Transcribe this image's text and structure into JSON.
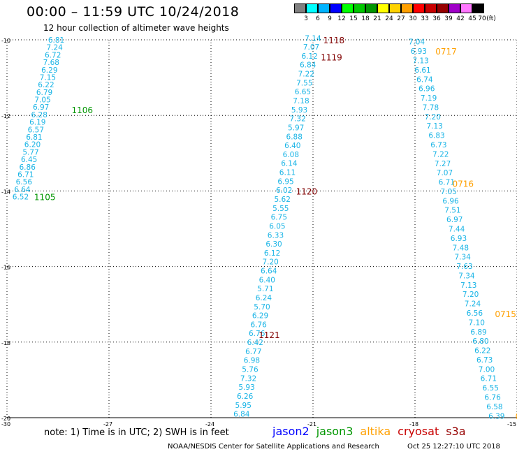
{
  "header": {
    "title": "00:00 – 11:59 UTC 10/24/2018",
    "subtitle": "12 hour collection of altimeter wave heights"
  },
  "color_scale": {
    "unit_label": "(ft)",
    "entries": [
      {
        "label": "3",
        "color": "#808080"
      },
      {
        "label": "6",
        "color": "#00ffff"
      },
      {
        "label": "9",
        "color": "#00b4ff"
      },
      {
        "label": "12",
        "color": "#0000ff"
      },
      {
        "label": "15",
        "color": "#00ff00"
      },
      {
        "label": "18",
        "color": "#00c800"
      },
      {
        "label": "21",
        "color": "#009600"
      },
      {
        "label": "24",
        "color": "#ffff00"
      },
      {
        "label": "27",
        "color": "#ffd200"
      },
      {
        "label": "30",
        "color": "#ffa000"
      },
      {
        "label": "33",
        "color": "#ff0000"
      },
      {
        "label": "36",
        "color": "#c80000"
      },
      {
        "label": "39",
        "color": "#960000"
      },
      {
        "label": "42",
        "color": "#a000c8"
      },
      {
        "label": "45",
        "color": "#ff78ff"
      },
      {
        "label": "70",
        "color": "#000000"
      }
    ]
  },
  "map": {
    "lon_range": [
      -30,
      -15
    ],
    "lat_range": [
      -20,
      -10
    ],
    "lon_ticks": [
      "-30",
      "-27",
      "-24",
      "-21",
      "-18",
      "-15"
    ],
    "lat_ticks": [
      "-10",
      "-12",
      "-14",
      "-16",
      "-18",
      "-20"
    ],
    "colors": {
      "value": "#19b4e6",
      "jason2": "#0000ff",
      "jason3": "#009600",
      "altika": "#ffa000",
      "cryosat": "#c80000",
      "s3a": "#960000",
      "timelabel_dark": "#800000"
    },
    "tracks": [
      {
        "name": "track-1106-1105",
        "lon_start": -28.55,
        "lat_start": -10.0,
        "lon_end": -29.6,
        "lat_end": -14.15,
        "values": [
          "6.81",
          "7.24",
          "6.72",
          "7.68",
          "6.29",
          "7.15",
          "6.22",
          "6.79",
          "7.05",
          "6.97",
          "6.28",
          "6.19",
          "6.57",
          "6.81",
          "6.20",
          "5.77",
          "6.45",
          "6.86",
          "6.71",
          "6.56",
          "6.64",
          "6.52"
        ],
        "time_labels": [
          {
            "text": "1106",
            "lon": -28.1,
            "lat": -11.85,
            "color": "#009600"
          },
          {
            "text": "1105",
            "lon": -29.2,
            "lat": -14.15,
            "color": "#009600"
          }
        ]
      },
      {
        "name": "track-1118-1121",
        "lon_start": -21.0,
        "lat_start": -9.95,
        "lon_end": -23.1,
        "lat_end": -19.9,
        "values": [
          "7.14",
          "7.07",
          "6.12",
          "6.84",
          "7.22",
          "7.55",
          "6.65",
          "7.18",
          "5.93",
          "7.32",
          "5.97",
          "6.88",
          "6.40",
          "6.08",
          "6.14",
          "6.11",
          "6.95",
          "6.02",
          "5.62",
          "5.55",
          "6.75",
          "6.05",
          "6.33",
          "6.30",
          "6.12",
          "7.20",
          "6.64",
          "6.40",
          "5.71",
          "6.24",
          "5.70",
          "6.29",
          "6.76",
          "6.76",
          "6.42",
          "6.77",
          "6.98",
          "5.76",
          "7.32",
          "5.93",
          "6.26",
          "5.95",
          "6.84"
        ],
        "time_labels": [
          {
            "text": "1118",
            "lon": -20.7,
            "lat": -10.0,
            "color": "#800000"
          },
          {
            "text": "1119",
            "lon": -20.77,
            "lat": -10.45,
            "color": "#800000"
          },
          {
            "text": "1120",
            "lon": -21.5,
            "lat": -14.0,
            "color": "#800000"
          },
          {
            "text": "1121",
            "lon": -22.6,
            "lat": -17.8,
            "color": "#800000"
          }
        ]
      },
      {
        "name": "track-0717-0715",
        "lon_start": -17.95,
        "lat_start": -10.05,
        "lon_end": -15.6,
        "lat_end": -19.95,
        "values": [
          "7.04",
          "6.93",
          "7.13",
          "6.61",
          "6.74",
          "6.96",
          "7.19",
          "7.78",
          "7.20",
          "7.13",
          "6.83",
          "6.73",
          "7.22",
          "7.27",
          "7.07",
          "6.71",
          "7.05",
          "6.96",
          "7.51",
          "6.97",
          "7.44",
          "6.93",
          "7.48",
          "7.34",
          "7.63",
          "7.34",
          "7.13",
          "7.20",
          "7.24",
          "6.56",
          "7.10",
          "6.89",
          "6.80",
          "6.22",
          "6.73",
          "7.00",
          "6.71",
          "6.55",
          "6.76",
          "6.58",
          "6.39"
        ],
        "time_labels": [
          {
            "text": "0717",
            "lon": -17.4,
            "lat": -10.3,
            "color": "#ffa000"
          },
          {
            "text": "0716",
            "lon": -16.9,
            "lat": -13.8,
            "color": "#ffa000"
          },
          {
            "text": "0715",
            "lon": -15.65,
            "lat": -17.25,
            "color": "#ffa000"
          },
          {
            "text": "07",
            "lon": -15.05,
            "lat": -19.95,
            "color": "#ffa000"
          }
        ]
      }
    ]
  },
  "note": "note: 1) Time is in UTC; 2) SWH is in feet",
  "legend": [
    {
      "label": "jason2",
      "color": "#0000ff"
    },
    {
      "label": "jason3",
      "color": "#009600"
    },
    {
      "label": "altika",
      "color": "#ffa000"
    },
    {
      "label": "cryosat",
      "color": "#c80000"
    },
    {
      "label": "s3a",
      "color": "#960000"
    }
  ],
  "footer": {
    "center": "NOAA/NESDIS Center for Satellite Applications and Research",
    "date": "Oct 25 12:27:10 UTC 2018"
  }
}
